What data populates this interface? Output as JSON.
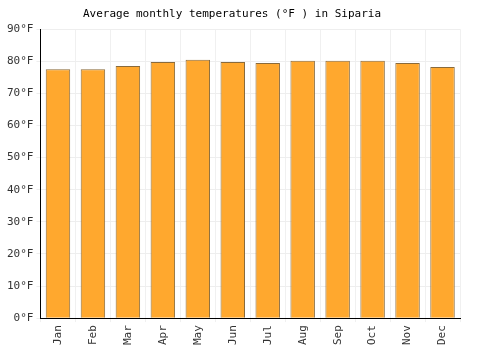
{
  "chart_data": {
    "type": "bar",
    "title": "Average monthly temperatures (°F ) in Siparia",
    "categories": [
      "Jan",
      "Feb",
      "Mar",
      "Apr",
      "May",
      "Jun",
      "Jul",
      "Aug",
      "Sep",
      "Oct",
      "Nov",
      "Dec"
    ],
    "values": [
      77.5,
      77.5,
      78.5,
      79.8,
      80.5,
      79.8,
      79.5,
      80.2,
      80.2,
      80.2,
      79.5,
      78.2
    ],
    "color": "#ffa82e",
    "ylim": [
      0,
      90
    ],
    "yticks": [
      {
        "value": 0,
        "label": "0°F"
      },
      {
        "value": 10,
        "label": "10°F"
      },
      {
        "value": 20,
        "label": "20°F"
      },
      {
        "value": 30,
        "label": "30°F"
      },
      {
        "value": 40,
        "label": "40°F"
      },
      {
        "value": 50,
        "label": "50°F"
      },
      {
        "value": 60,
        "label": "60°F"
      },
      {
        "value": 70,
        "label": "70°F"
      },
      {
        "value": 80,
        "label": "80°F"
      },
      {
        "value": 90,
        "label": "90°F"
      }
    ],
    "grid": true
  }
}
